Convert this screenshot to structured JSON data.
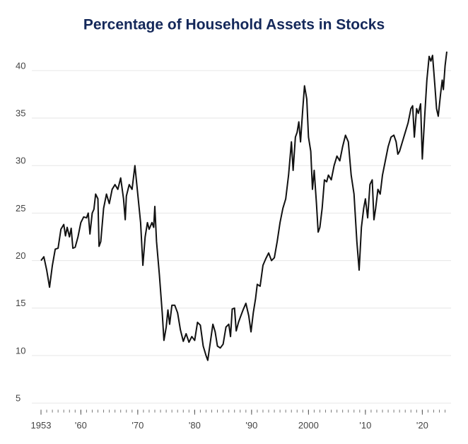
{
  "chart_data": {
    "type": "line",
    "title": "Percentage of Household Assets in Stocks",
    "x": [
      1953,
      1953.5,
      1954,
      1954.5,
      1955,
      1955.5,
      1956,
      1956.5,
      1957,
      1957.3,
      1957.6,
      1958,
      1958.3,
      1958.6,
      1959,
      1959.5,
      1960,
      1960.5,
      1961,
      1961.3,
      1961.6,
      1962,
      1962.3,
      1962.6,
      1963,
      1963.2,
      1963.5,
      1964,
      1964.5,
      1965,
      1965.5,
      1966,
      1966.5,
      1967,
      1967.5,
      1967.8,
      1968,
      1968.5,
      1969,
      1969.5,
      1970,
      1970.5,
      1970.9,
      1971.3,
      1971.7,
      1972,
      1972.5,
      1972.8,
      1973,
      1973.3,
      1973.8,
      1974.3,
      1974.6,
      1975,
      1975.3,
      1975.6,
      1976,
      1976.5,
      1977,
      1977.5,
      1978,
      1978.5,
      1979,
      1979.5,
      1980,
      1980.5,
      1981,
      1981.5,
      1982,
      1982.3,
      1982.8,
      1983.2,
      1983.6,
      1984,
      1984.5,
      1985,
      1985.5,
      1986,
      1986.3,
      1986.6,
      1987,
      1987.3,
      1987.7,
      1988,
      1988.5,
      1989,
      1989.5,
      1989.9,
      1990.3,
      1990.7,
      1991,
      1991.5,
      1992,
      1992.5,
      1993,
      1993.5,
      1994,
      1994.5,
      1995,
      1995.5,
      1996,
      1996.5,
      1997,
      1997.3,
      1997.7,
      1998,
      1998.3,
      1998.6,
      1999,
      1999.3,
      1999.7,
      2000,
      2000.4,
      2000.7,
      2001,
      2001.4,
      2001.7,
      2002,
      2002.4,
      2002.8,
      2003.2,
      2003.5,
      2004,
      2004.5,
      2005,
      2005.5,
      2006,
      2006.5,
      2007,
      2007.5,
      2008,
      2008.5,
      2008.9,
      2009.3,
      2009.7,
      2010,
      2010.4,
      2010.8,
      2011.2,
      2011.5,
      2011.8,
      2012.2,
      2012.6,
      2013,
      2013.5,
      2014,
      2014.5,
      2015,
      2015.4,
      2015.7,
      2016,
      2016.5,
      2017,
      2017.5,
      2018,
      2018.3,
      2018.6,
      2019,
      2019.3,
      2019.7,
      2020,
      2020.4,
      2020.8,
      2021.2,
      2021.5,
      2021.8,
      2022.2,
      2022.5,
      2022.8,
      2023.2,
      2023.5,
      2023.7,
      2024,
      2024.3
    ],
    "values": [
      20.0,
      20.4,
      19.0,
      17.2,
      19.5,
      21.2,
      21.3,
      23.3,
      23.8,
      22.6,
      23.5,
      22.5,
      23.4,
      21.3,
      21.4,
      22.5,
      24.0,
      24.6,
      24.5,
      25.0,
      22.8,
      25.0,
      25.4,
      27.0,
      26.5,
      21.5,
      22.0,
      25.5,
      27.0,
      26.0,
      27.5,
      28.0,
      27.5,
      28.7,
      26.5,
      24.3,
      26.8,
      28.0,
      27.5,
      30.0,
      27.0,
      24.0,
      19.5,
      22.5,
      24.0,
      23.3,
      24.0,
      23.5,
      25.7,
      22.0,
      18.5,
      14.5,
      11.6,
      13.0,
      14.8,
      13.3,
      15.3,
      15.3,
      14.5,
      12.7,
      11.5,
      12.3,
      11.4,
      12.0,
      11.6,
      13.5,
      13.2,
      11.0,
      10.0,
      9.5,
      11.6,
      13.3,
      12.5,
      11.0,
      10.8,
      11.2,
      13.0,
      13.3,
      12.0,
      14.9,
      15.0,
      12.6,
      13.5,
      14.0,
      14.8,
      15.5,
      14.2,
      12.5,
      14.5,
      16.0,
      17.5,
      17.3,
      19.5,
      20.2,
      20.8,
      20.0,
      20.3,
      22.0,
      24.0,
      25.5,
      26.5,
      29.0,
      32.5,
      29.5,
      33.0,
      33.5,
      34.6,
      32.5,
      36.0,
      38.4,
      37.0,
      33.0,
      31.5,
      27.5,
      29.5,
      26.0,
      23.0,
      23.5,
      25.5,
      28.5,
      28.3,
      29.0,
      28.5,
      30.0,
      31.0,
      30.5,
      32.0,
      33.2,
      32.5,
      29.0,
      27.0,
      22.0,
      19.0,
      23.5,
      25.5,
      26.5,
      24.5,
      28.0,
      28.5,
      24.3,
      25.5,
      27.5,
      27.0,
      29.0,
      30.5,
      32.0,
      33.0,
      33.2,
      32.5,
      31.2,
      31.5,
      32.5,
      33.5,
      34.5,
      36.0,
      36.3,
      33.0,
      36.0,
      35.5,
      36.5,
      30.7,
      35.0,
      39.0,
      41.5,
      41.0,
      41.6,
      38.5,
      36.0,
      35.2,
      37.5,
      39.0,
      38.0,
      40.5,
      42.0
    ],
    "color": "#111111",
    "xlim": [
      1953,
      2024.5
    ],
    "xticks": [
      1953,
      {
        "value": 1960,
        "label": "'60"
      },
      {
        "value": 1970,
        "label": "'70"
      },
      {
        "value": 1980,
        "label": "'80"
      },
      {
        "value": 1990,
        "label": "'90"
      },
      2000,
      {
        "value": 2010,
        "label": "'10"
      },
      {
        "value": 2020,
        "label": "'20"
      }
    ],
    "xminorticks": [
      1953,
      1954,
      1955,
      1956,
      1957,
      1958,
      1959,
      1960,
      1961,
      1962,
      1963,
      1964,
      1965,
      1966,
      1967,
      1968,
      1969,
      1970,
      1971,
      1972,
      1973,
      1974,
      1975,
      1976,
      1977,
      1978,
      1979,
      1980,
      1981,
      1982,
      1983,
      1984,
      1985,
      1986,
      1987,
      1988,
      1989,
      1990,
      1991,
      1992,
      1993,
      1994,
      1995,
      1996,
      1997,
      1998,
      1999,
      2000,
      2001,
      2002,
      2003,
      2004,
      2005,
      2006,
      2007,
      2008,
      2009,
      2010,
      2011,
      2012,
      2013,
      2014,
      2015,
      2016,
      2017,
      2018,
      2019,
      2020,
      2021,
      2022,
      2023,
      2024
    ],
    "ylim": [
      4.3,
      42
    ],
    "yticks": [
      5,
      10,
      15,
      20,
      25,
      30,
      35,
      40
    ],
    "grid": true
  }
}
